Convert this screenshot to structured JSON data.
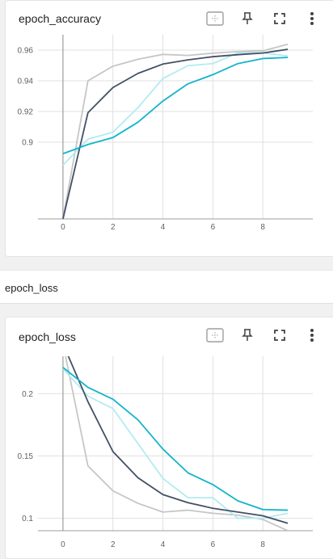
{
  "section": {
    "title": "epoch_loss"
  },
  "toolbar_icons": [
    "fit-domain-icon",
    "pin-icon",
    "fullscreen-icon",
    "more-vert-icon"
  ],
  "colors": {
    "teal": "#12b5cb",
    "light_teal": "#b2ebf2",
    "dark": "#425066",
    "light_gray": "#c6c6c6",
    "axis": "#9e9e9e",
    "grid": "#e0e0e0"
  },
  "cards": [
    {
      "title": "epoch_accuracy"
    },
    {
      "title": "epoch_loss"
    }
  ],
  "chart_data": [
    {
      "type": "line",
      "title": "epoch_accuracy",
      "xlim": [
        -1,
        10
      ],
      "ylim": [
        0.85,
        0.97
      ],
      "x_ticks": [
        "0",
        "2",
        "4",
        "6",
        "8"
      ],
      "y_ticks": [
        "0.96",
        "0.94",
        "0.92",
        "0.9"
      ],
      "series": [
        {
          "color": "#c6c6c6",
          "x": [
            0,
            1,
            2,
            3,
            4,
            5,
            6,
            7,
            8,
            9
          ],
          "values": [
            0.85,
            0.94,
            0.9495,
            0.954,
            0.9572,
            0.9565,
            0.958,
            0.959,
            0.9595,
            0.9638
          ]
        },
        {
          "color": "#b2ebf2",
          "x": [
            0,
            1,
            2,
            3,
            4,
            5,
            6,
            7,
            8,
            9
          ],
          "values": [
            0.885,
            0.902,
            0.9065,
            0.9225,
            0.9415,
            0.9498,
            0.9512,
            0.9582,
            0.9582,
            0.9562
          ]
        },
        {
          "color": "#425066",
          "x": [
            0,
            1,
            2,
            3,
            4,
            5,
            6,
            7,
            8,
            9
          ],
          "values": [
            0.85,
            0.9192,
            0.9356,
            0.9448,
            0.9509,
            0.9536,
            0.9557,
            0.957,
            0.9581,
            0.9605
          ]
        },
        {
          "color": "#12b5cb",
          "x": [
            0,
            1,
            2,
            3,
            4,
            5,
            6,
            7,
            8,
            9
          ],
          "values": [
            0.8925,
            0.8985,
            0.903,
            0.913,
            0.9268,
            0.938,
            0.944,
            0.9512,
            0.9545,
            0.9552
          ]
        }
      ]
    },
    {
      "type": "line",
      "title": "epoch_loss",
      "xlim": [
        -1,
        10
      ],
      "ylim": [
        0.09,
        0.23
      ],
      "x_ticks": [
        "0",
        "2",
        "4",
        "6",
        "8"
      ],
      "y_ticks": [
        "0.2",
        "0.15",
        "0.1"
      ],
      "series": [
        {
          "color": "#c6c6c6",
          "x": [
            0,
            1,
            2,
            3,
            4,
            5,
            6,
            7,
            8,
            9
          ],
          "values": [
            0.24,
            0.142,
            0.122,
            0.112,
            0.105,
            0.1065,
            0.104,
            0.1025,
            0.099,
            0.09
          ]
        },
        {
          "color": "#b2ebf2",
          "x": [
            0,
            1,
            2,
            3,
            4,
            5,
            6,
            7,
            8,
            9
          ],
          "values": [
            0.22,
            0.198,
            0.188,
            0.16,
            0.132,
            0.1165,
            0.1165,
            0.1,
            0.1,
            0.104
          ]
        },
        {
          "color": "#425066",
          "x": [
            0,
            1,
            2,
            3,
            4,
            5,
            6,
            7,
            8,
            9
          ],
          "values": [
            0.24,
            0.1935,
            0.1535,
            0.1325,
            0.119,
            0.1125,
            0.108,
            0.105,
            0.102,
            0.096
          ]
        },
        {
          "color": "#12b5cb",
          "x": [
            0,
            1,
            2,
            3,
            4,
            5,
            6,
            7,
            8,
            9
          ],
          "values": [
            0.221,
            0.205,
            0.1955,
            0.179,
            0.1555,
            0.1365,
            0.127,
            0.114,
            0.107,
            0.1065
          ]
        }
      ]
    }
  ]
}
